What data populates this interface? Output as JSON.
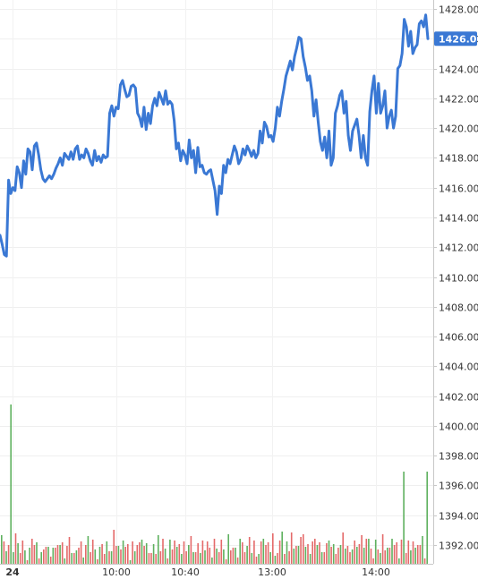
{
  "chart_data": {
    "type": "line",
    "price_axis": {
      "min": 1390.5,
      "max": 1428.5,
      "ticks": [
        "1428.00",
        "1426.00",
        "1424.00",
        "1422.00",
        "1420.00",
        "1418.00",
        "1416.00",
        "1414.00",
        "1412.00",
        "1410.00",
        "1408.00",
        "1406.00",
        "1404.00",
        "1402.00",
        "1400.00",
        "1398.00",
        "1396.00",
        "1394.00",
        "1392.00"
      ],
      "tick_values": [
        1428,
        1426,
        1424,
        1422,
        1420,
        1418,
        1416,
        1414,
        1412,
        1410,
        1408,
        1406,
        1404,
        1402,
        1400,
        1398,
        1396,
        1394,
        1392
      ]
    },
    "time_labels": [
      "24",
      "10:00",
      "10:40",
      "13:00",
      "14:00"
    ],
    "last_price_label": "1426.00",
    "line_color": "#3a78d4",
    "badge_color": "#3a78d4",
    "volume_up_color": "#5fb15f",
    "volume_down_color": "#e46a6a",
    "price_series": [
      1412.8,
      1412.2,
      1411.5,
      1411.4,
      1416.5,
      1415.6,
      1416.0,
      1415.8,
      1417.4,
      1417.0,
      1416.0,
      1417.8,
      1416.9,
      1418.6,
      1418.4,
      1417.2,
      1418.8,
      1419.0,
      1418.2,
      1417.2,
      1416.6,
      1416.4,
      1416.6,
      1416.8,
      1416.6,
      1416.9,
      1417.3,
      1417.6,
      1418.0,
      1417.5,
      1418.3,
      1418.1,
      1417.9,
      1418.4,
      1417.9,
      1418.6,
      1418.8,
      1417.9,
      1418.2,
      1418.0,
      1418.6,
      1418.3,
      1417.8,
      1417.5,
      1418.5,
      1417.8,
      1418.1,
      1417.7,
      1418.2,
      1418.0,
      1418.1,
      1421.0,
      1421.5,
      1420.8,
      1421.4,
      1421.3,
      1422.9,
      1423.2,
      1422.6,
      1422.1,
      1422.2,
      1422.8,
      1422.9,
      1422.7,
      1421.0,
      1420.7,
      1420.1,
      1421.4,
      1419.9,
      1421.0,
      1420.3,
      1421.5,
      1422.0,
      1421.5,
      1422.4,
      1422.0,
      1421.6,
      1422.5,
      1421.6,
      1421.8,
      1421.6,
      1420.5,
      1418.6,
      1419.0,
      1417.8,
      1418.5,
      1418.2,
      1417.6,
      1419.2,
      1418.0,
      1418.5,
      1417.0,
      1418.7,
      1417.4,
      1417.5,
      1417.0,
      1416.9,
      1417.1,
      1417.2,
      1416.5,
      1415.8,
      1414.2,
      1416.1,
      1415.6,
      1417.5,
      1417.0,
      1417.9,
      1417.6,
      1418.2,
      1418.8,
      1418.4,
      1417.6,
      1417.9,
      1418.6,
      1418.2,
      1418.8,
      1418.5,
      1418.1,
      1418.5,
      1418.0,
      1418.3,
      1419.8,
      1419.0,
      1420.4,
      1420.1,
      1419.4,
      1419.5,
      1419.1,
      1420.0,
      1421.4,
      1420.8,
      1421.8,
      1422.6,
      1423.5,
      1424.0,
      1424.5,
      1423.9,
      1424.8,
      1425.4,
      1426.1,
      1426.0,
      1424.8,
      1424.1,
      1423.2,
      1423.5,
      1422.5,
      1420.8,
      1421.9,
      1420.4,
      1419.1,
      1418.5,
      1419.4,
      1418.0,
      1419.8,
      1417.5,
      1418.0,
      1421.0,
      1421.5,
      1422.2,
      1422.5,
      1421.0,
      1421.8,
      1419.5,
      1418.5,
      1419.8,
      1420.2,
      1420.6,
      1419.5,
      1418.0,
      1419.5,
      1418.0,
      1417.5,
      1421.1,
      1422.5,
      1423.5,
      1421.0,
      1423.0,
      1421.0,
      1421.5,
      1422.5,
      1420.0,
      1420.8,
      1421.2,
      1420.0,
      1420.8,
      1424.0,
      1424.2,
      1425.0,
      1427.3,
      1426.8,
      1425.5,
      1426.5,
      1425.0,
      1425.4,
      1425.6,
      1427.0,
      1427.2,
      1426.8,
      1427.6,
      1426.0
    ],
    "volume_up": [
      4,
      2,
      1,
      1,
      12,
      1,
      3,
      2,
      1,
      2,
      1,
      0,
      1,
      3,
      1,
      2,
      0,
      0,
      1,
      2,
      1,
      0,
      2,
      1,
      2,
      1,
      2,
      0,
      1,
      3,
      1,
      0,
      1,
      2,
      2,
      0,
      1,
      3,
      1,
      2,
      1,
      0,
      1,
      2,
      1,
      2,
      1,
      0,
      4,
      2,
      1,
      1,
      3,
      1,
      2,
      0,
      2,
      1,
      1,
      2,
      3,
      1,
      2,
      1,
      0,
      2,
      1,
      3,
      1,
      2,
      1,
      0,
      2,
      1,
      3,
      1,
      2,
      1,
      2,
      1,
      1,
      3,
      1,
      0,
      2,
      1,
      2,
      1,
      3,
      1,
      0,
      2,
      1,
      1,
      2,
      1,
      0,
      3,
      1,
      2,
      1,
      0,
      2,
      2,
      1,
      1,
      3,
      1,
      2,
      0,
      1,
      2,
      3,
      1,
      2,
      1,
      3,
      0,
      1,
      2,
      4,
      1,
      2,
      1,
      3,
      1,
      2,
      1,
      3,
      4,
      1,
      2,
      1,
      2,
      3,
      1,
      2,
      1,
      0,
      2,
      3,
      1,
      2,
      1,
      1,
      2,
      3,
      1,
      2,
      0,
      1,
      3,
      1,
      2,
      4,
      1,
      3,
      2,
      1,
      0,
      2,
      1,
      1,
      3,
      1,
      2,
      1,
      3,
      1,
      2,
      0,
      2,
      5,
      1,
      2,
      1,
      3,
      1,
      2,
      1,
      3,
      0,
      5
    ]
  }
}
